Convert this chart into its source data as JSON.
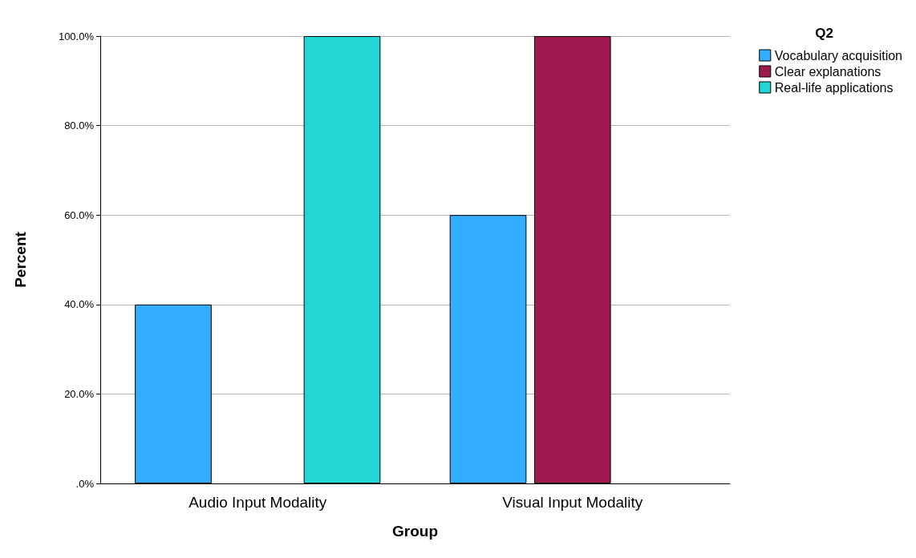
{
  "chart_data": {
    "type": "bar",
    "xlabel": "Group",
    "ylabel": "Percent",
    "legend_title": "Q2",
    "categories": [
      "Audio Input Modality",
      "Visual Input Modality"
    ],
    "series": [
      {
        "name": "Vocabulary acquisition",
        "color": "#33adff",
        "values": [
          40,
          60
        ]
      },
      {
        "name": "Clear explanations",
        "color": "#9e1a4e",
        "values": [
          null,
          100
        ]
      },
      {
        "name": "Real-life applications",
        "color": "#21d6d4",
        "values": [
          100,
          null
        ]
      }
    ],
    "ylim": [
      0,
      100
    ],
    "yticks": [
      {
        "value": 0,
        "label": ".0%"
      },
      {
        "value": 20,
        "label": "20.0%"
      },
      {
        "value": 40,
        "label": "40.0%"
      },
      {
        "value": 60,
        "label": "60.0%"
      },
      {
        "value": 80,
        "label": "80.0%"
      },
      {
        "value": 100,
        "label": "100.0%"
      }
    ],
    "grid": "y",
    "legend": "top right"
  }
}
